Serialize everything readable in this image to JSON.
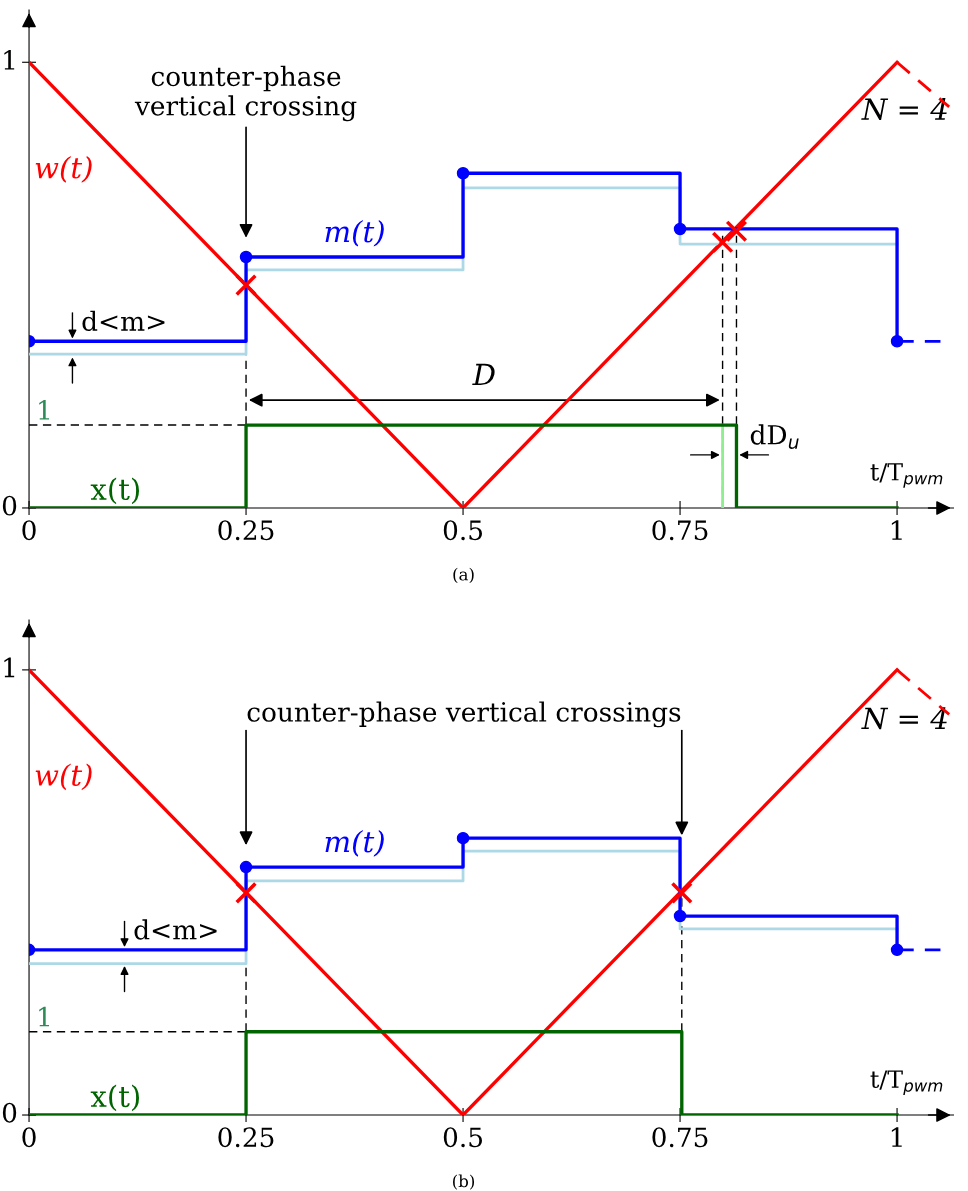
{
  "chart_data": [
    {
      "type": "line",
      "xlabel": "t/T$_{pwm}$",
      "xlim": [
        0,
        1.065
      ],
      "ylim": [
        0,
        1.117
      ],
      "xticks": [
        0,
        0.25,
        0.5,
        0.75,
        1
      ],
      "yticks": [
        0,
        1
      ],
      "series": [
        {
          "name": "w(t)",
          "color": "#ff0000",
          "x": [
            0,
            0.5,
            1
          ],
          "values": [
            1,
            0,
            1
          ]
        },
        {
          "color": "#ff0000",
          "x": [
            1,
            1.06
          ],
          "values": [
            1,
            0.9
          ],
          "line_style": "dashed"
        },
        {
          "color": "#add8e6",
          "type": "step",
          "x": [
            0,
            0.25,
            0.5,
            0.75,
            1
          ],
          "values": [
            0.345,
            0.534,
            0.718,
            0.592,
            0.592
          ]
        },
        {
          "name": "m(t)",
          "color": "#0000ff",
          "type": "step",
          "marker": "circle",
          "x": [
            0,
            0.25,
            0.5,
            0.75,
            1
          ],
          "values": [
            0.374,
            0.563,
            0.751,
            0.626,
            0.374
          ]
        },
        {
          "color": "#0000ff",
          "x": [
            1,
            1.05
          ],
          "values": [
            0.374,
            0.374
          ],
          "line_style": "dashed"
        },
        {
          "color": "#90ee90",
          "x": [
            0.799,
            0.799
          ],
          "values": [
            0.186,
            0
          ]
        },
        {
          "name": "x(t)",
          "color": "#006400",
          "type": "step",
          "x": [
            0,
            0.25,
            0.815,
            1
          ],
          "values": [
            0,
            0.186,
            0,
            0
          ]
        },
        {
          "color": "#ff0000",
          "type": "scatter",
          "marker": "cross",
          "x": [
            0.25,
            0.799,
            0.815
          ],
          "values": [
            0.5,
            0.596,
            0.621
          ]
        }
      ],
      "ref_lines": [
        {
          "axis": "x",
          "value": 0.25,
          "line_style": "dashed",
          "color": "#000000"
        },
        {
          "axis": "x",
          "value": 0.799,
          "line_style": "dashed",
          "color": "#000000"
        },
        {
          "axis": "x",
          "value": 0.815,
          "line_style": "dashed",
          "color": "#000000"
        },
        {
          "axis": "y",
          "value": 0.186,
          "line_style": "dashed",
          "color": "#000000"
        }
      ],
      "annotations": [
        "counter-phase\nvertical crossing",
        {
          "text": "d<m>",
          "x": 0.05,
          "y": 0.374
        },
        {
          "text": "dD$_{u}$",
          "x": 0.815,
          "y": 0.119
        },
        {
          "text": "1",
          "x": 0,
          "y": 0.186
        },
        "D",
        "N = 4",
        "(a)"
      ]
    },
    {
      "type": "line",
      "xlabel": "t/T$_{pwm}$",
      "xlim": [
        0,
        1.065
      ],
      "ylim": [
        0,
        1.112
      ],
      "xticks": [
        0,
        0.25,
        0.5,
        0.75,
        1
      ],
      "yticks": [
        0,
        1
      ],
      "series": [
        {
          "name": "w(t)",
          "color": "#ff0000",
          "x": [
            0,
            0.5,
            1
          ],
          "values": [
            1,
            0,
            1
          ]
        },
        {
          "color": "#ff0000",
          "x": [
            1,
            1.06
          ],
          "values": [
            1,
            0.9
          ],
          "line_style": "dashed"
        },
        {
          "color": "#add8e6",
          "type": "step",
          "x": [
            0,
            0.25,
            0.5,
            0.75,
            1
          ],
          "values": [
            0.34,
            0.526,
            0.593,
            0.418,
            0.418
          ]
        },
        {
          "name": "m(t)",
          "color": "#0000ff",
          "type": "step",
          "marker": "circle",
          "x": [
            0,
            0.25,
            0.5,
            0.75,
            1
          ],
          "values": [
            0.371,
            0.557,
            0.622,
            0.447,
            0.371
          ]
        },
        {
          "color": "#0000ff",
          "x": [
            1,
            1.05
          ],
          "values": [
            0.371,
            0.371
          ],
          "line_style": "dashed"
        },
        {
          "name": "x(t)",
          "color": "#006400",
          "type": "step",
          "x": [
            0,
            0.25,
            0.752,
            1
          ],
          "values": [
            0,
            0.187,
            0,
            0
          ]
        },
        {
          "color": "#ff0000",
          "type": "scatter",
          "marker": "cross",
          "x": [
            0.25,
            0.752
          ],
          "values": [
            0.499,
            0.499
          ]
        }
      ],
      "ref_lines": [
        {
          "axis": "x",
          "value": 0.25,
          "line_style": "dashed",
          "color": "#000000"
        },
        {
          "axis": "x",
          "value": 0.752,
          "line_style": "dashed",
          "color": "#000000"
        },
        {
          "axis": "y",
          "value": 0.187,
          "line_style": "dashed",
          "color": "#000000"
        }
      ],
      "annotations": [
        {
          "text": "counter-phase vertical crossings",
          "x": 0.752,
          "y": 0.622
        },
        {
          "text": "d<m>",
          "x": 0.11,
          "y": 0.371
        },
        {
          "text": "1",
          "x": 0,
          "y": 0.187
        },
        "N = 4",
        "(b)"
      ]
    }
  ]
}
